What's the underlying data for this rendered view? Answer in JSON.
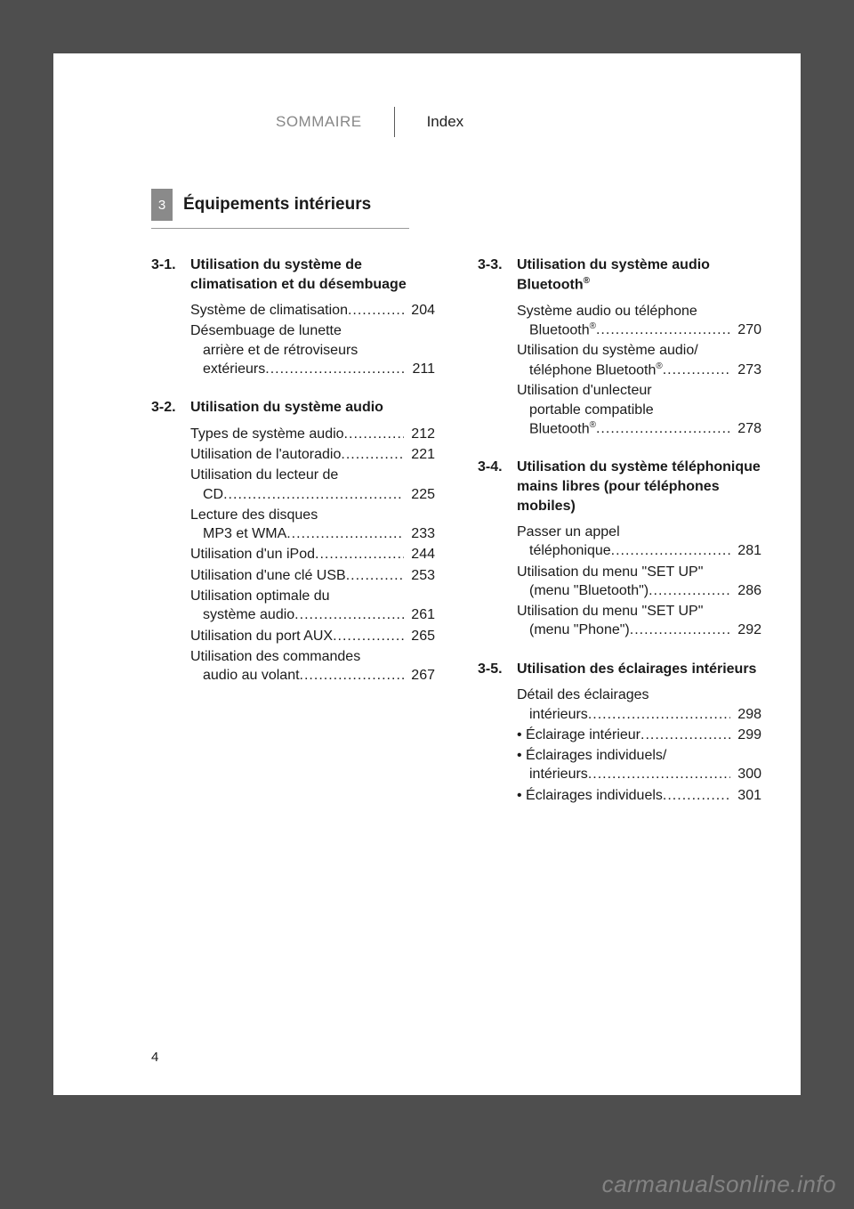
{
  "header": {
    "sommaire": "SOMMAIRE",
    "index": "Index"
  },
  "chapter": {
    "num": "3",
    "title": "Équipements intérieurs",
    "tab_bg": "#8a8a8a",
    "tab_fg": "#ffffff"
  },
  "page_number": "4",
  "watermark": "carmanualsonline.info",
  "colors": {
    "page_bg": "#ffffff",
    "body_bg": "#4e4e4e",
    "text": "#1a1a1a",
    "muted": "#878787",
    "rule": "#9a9a9a"
  },
  "left_sections": [
    {
      "num": "3-1.",
      "title": "Utilisation du système de climatisation et du désembuage",
      "entries": [
        {
          "lines": [
            "Système de climatisation"
          ],
          "page": "204"
        },
        {
          "lines": [
            "Désembuage de lunette",
            "arrière et de rétroviseurs",
            "extérieurs"
          ],
          "page": "211"
        }
      ]
    },
    {
      "num": "3-2.",
      "title": "Utilisation du système audio",
      "entries": [
        {
          "lines": [
            "Types de système audio"
          ],
          "page": "212"
        },
        {
          "lines": [
            "Utilisation de l'autoradio"
          ],
          "page": "221"
        },
        {
          "lines": [
            "Utilisation du lecteur de",
            "CD"
          ],
          "page": "225"
        },
        {
          "lines": [
            "Lecture des disques",
            "MP3 et WMA"
          ],
          "page": "233"
        },
        {
          "lines": [
            "Utilisation d'un iPod"
          ],
          "page": "244"
        },
        {
          "lines": [
            "Utilisation d'une clé USB"
          ],
          "page": "253"
        },
        {
          "lines": [
            "Utilisation optimale du",
            "système audio"
          ],
          "page": "261"
        },
        {
          "lines": [
            "Utilisation du port AUX"
          ],
          "page": "265"
        },
        {
          "lines": [
            "Utilisation des commandes",
            "audio au volant"
          ],
          "page": "267"
        }
      ]
    }
  ],
  "right_sections": [
    {
      "num": "3-3.",
      "title_html": "Utilisation du système audio Bluetooth<sup>®</sup>",
      "entries": [
        {
          "lines_html": [
            "Système audio ou téléphone",
            "Bluetooth<sup>®</sup>"
          ],
          "page": "270"
        },
        {
          "lines_html": [
            "Utilisation du système audio/",
            "téléphone Bluetooth<sup>®</sup>"
          ],
          "page": "273"
        },
        {
          "lines_html": [
            "Utilisation d'unlecteur",
            "portable compatible",
            "Bluetooth<sup>®</sup>"
          ],
          "page": "278"
        }
      ]
    },
    {
      "num": "3-4.",
      "title": "Utilisation du système téléphonique mains libres (pour téléphones mobiles)",
      "entries": [
        {
          "lines": [
            "Passer un appel",
            "téléphonique"
          ],
          "page": "281"
        },
        {
          "lines": [
            "Utilisation du menu \"SET UP\"",
            "(menu \"Bluetooth\")"
          ],
          "page": "286"
        },
        {
          "lines": [
            "Utilisation du menu \"SET UP\"",
            "(menu \"Phone\")"
          ],
          "page": "292"
        }
      ]
    },
    {
      "num": "3-5.",
      "title": "Utilisation des éclairages intérieurs",
      "entries": [
        {
          "lines": [
            "Détail des éclairages",
            "intérieurs"
          ],
          "page": "298"
        },
        {
          "bullet": true,
          "lines": [
            "Éclairage intérieur"
          ],
          "page": "299"
        },
        {
          "bullet": true,
          "lines": [
            "Éclairages individuels/",
            "intérieurs"
          ],
          "page": "300"
        },
        {
          "bullet": true,
          "lines": [
            "Éclairages individuels"
          ],
          "page": "301"
        }
      ]
    }
  ]
}
